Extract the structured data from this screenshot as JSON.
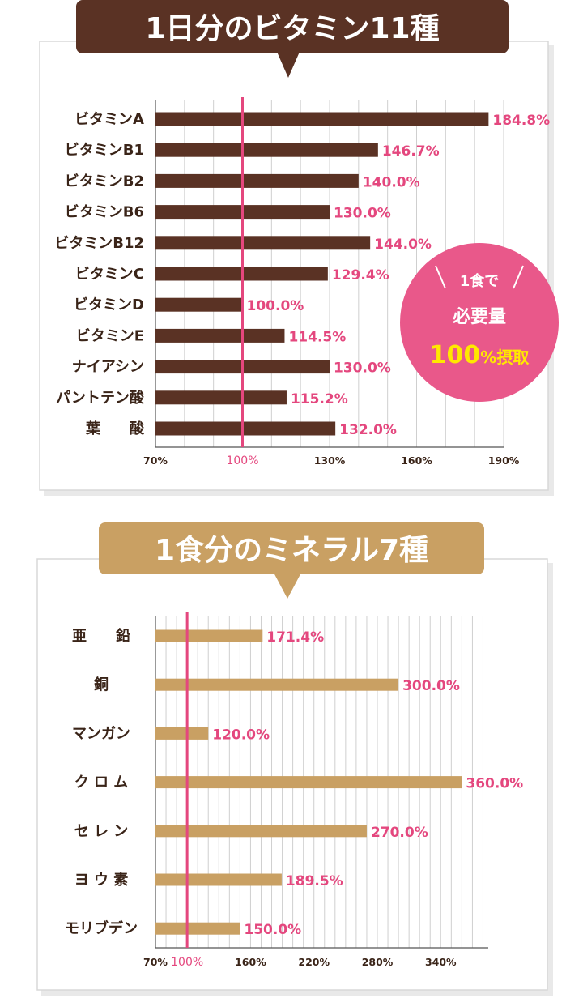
{
  "chart_data": [
    {
      "type": "bar",
      "title": "1日分のビタミン11種",
      "categories": [
        "ビタミンA",
        "ビタミンB1",
        "ビタミンB2",
        "ビタミンB6",
        "ビタミンB12",
        "ビタミンC",
        "ビタミンD",
        "ビタミンE",
        "ナイアシン",
        "パントテン酸",
        "葉　　酸"
      ],
      "values": [
        184.8,
        146.7,
        140.0,
        130.0,
        144.0,
        129.4,
        100.0,
        114.5,
        130.0,
        115.2,
        132.0
      ],
      "value_labels": [
        "184.8%",
        "146.7%",
        "140.0%",
        "130.0%",
        "144.0%",
        "129.4%",
        "100.0%",
        "114.5%",
        "130.0%",
        "115.2%",
        "132.0%"
      ],
      "xlim": [
        70,
        190
      ],
      "ticks": [
        70,
        100,
        130,
        160,
        190
      ],
      "tick_labels": [
        "70%",
        "100%",
        "130%",
        "160%",
        "190%"
      ],
      "reference_line": 100,
      "grid": true,
      "bar_color": "#5a3224",
      "title_bg": "#5a3224",
      "badge": {
        "line1": "1食で",
        "line2": "必要量",
        "line3_num": "100",
        "line3_suffix": "%摂取",
        "color": "#e9588a"
      }
    },
    {
      "type": "bar",
      "title": "1食分のミネラル7種",
      "categories": [
        "亜　　鉛",
        "銅",
        "マンガン",
        "ク ロ ム",
        "セ レ ン",
        "ヨ ウ 素",
        "モリブデン"
      ],
      "values": [
        171.4,
        300.0,
        120.0,
        360.0,
        270.0,
        189.5,
        150.0
      ],
      "value_labels": [
        "171.4%",
        "300.0%",
        "120.0%",
        "360.0%",
        "270.0%",
        "189.5%",
        "150.0%"
      ],
      "xlim": [
        70,
        385
      ],
      "ticks": [
        70,
        100,
        160,
        220,
        280,
        340
      ],
      "tick_labels": [
        "70%",
        "100%",
        "160%",
        "220%",
        "280%",
        "340%"
      ],
      "reference_line": 100,
      "grid": true,
      "bar_color": "#c9a063",
      "title_bg": "#c9a063"
    }
  ],
  "accent_color": "#e4477e"
}
